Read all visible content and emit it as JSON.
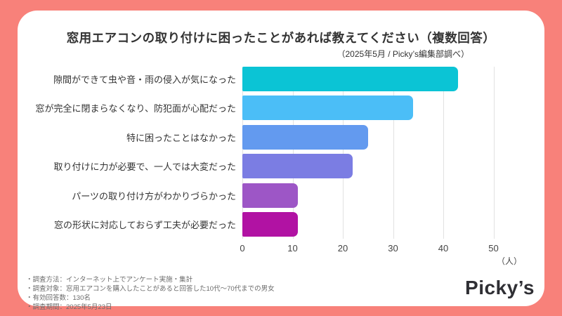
{
  "page": {
    "background_color": "#F8817A",
    "card_color": "#ffffff"
  },
  "header": {
    "title": "窓用エアコンの取り付けに困ったことがあれば教えてください（複数回答）",
    "subtitle": "（2025年5月 / Picky’s編集部調べ）"
  },
  "chart_data": {
    "type": "bar",
    "orientation": "horizontal",
    "title": "窓用エアコンの取り付けに困ったことがあれば教えてください（複数回答）",
    "categories": [
      "隙間ができて虫や音・雨の侵入が気になった",
      "窓が完全に閉まらなくなり、防犯面が心配だった",
      "特に困ったことはなかった",
      "取り付けに力が必要で、一人では大変だった",
      "パーツの取り付け方がわかりづらかった",
      "窓の形状に対応しておらず工夫が必要だった"
    ],
    "values": [
      43,
      34,
      25,
      22,
      11,
      11
    ],
    "bar_colors": [
      "#0BC4D5",
      "#4BBEF7",
      "#639AEF",
      "#7B7DE3",
      "#9D56C6",
      "#B112A3"
    ],
    "x_ticks": [
      0,
      10,
      20,
      30,
      40,
      50
    ],
    "xlim": [
      0,
      50
    ],
    "x_unit": "（人）",
    "xlabel": "",
    "ylabel": "",
    "grid": true,
    "gridline_color": "#e2e2e2",
    "legend": "none"
  },
  "footnotes": {
    "items": [
      "・調査方法：インターネット上でアンケート実施・集計",
      "・調査対象：窓用エアコンを購入したことがあると回答した10代～70代までの男女",
      "・有効回答数：130名",
      "・調査期間：2025年5月23日"
    ]
  },
  "logo": {
    "text": "Picky’s"
  }
}
